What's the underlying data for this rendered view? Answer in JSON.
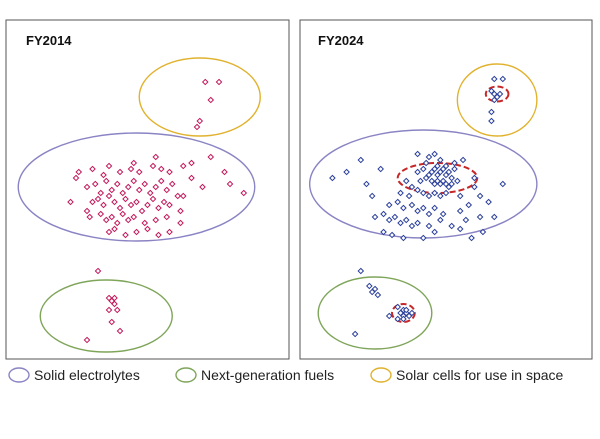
{
  "colors": {
    "solid_electrolytes": "#8a84c4",
    "next_generation_fuels": "#7fa55a",
    "solar_cells": "#e0b22e",
    "fy2014_points": "#c2185b",
    "fy2024_points": "#2a3f9a",
    "highlight": "#c62828"
  },
  "legend": {
    "items": [
      {
        "label": "Solid electrolytes",
        "color": "#8a84c4"
      },
      {
        "label": "Next-generation fuels",
        "color": "#7fa55a"
      },
      {
        "label": "Solar cells for use in space",
        "color": "#e0b22e"
      }
    ]
  },
  "chart_data": [
    {
      "type": "scatter",
      "title": "FY2014",
      "xlabel": "",
      "ylabel": "",
      "xlim": [
        0,
        100
      ],
      "ylim": [
        0,
        100
      ],
      "clusters": [
        {
          "name": "Solid electrolytes",
          "color": "#8a84c4",
          "center": [
            46,
            55
          ],
          "radius": [
            43,
            18
          ]
        },
        {
          "name": "Next-generation fuels",
          "color": "#7fa55a",
          "center": [
            35,
            12
          ],
          "radius": [
            24,
            12
          ]
        },
        {
          "name": "Solar cells for use in space",
          "color": "#e0b22e",
          "center": [
            69,
            85
          ],
          "radius": [
            22,
            13
          ]
        }
      ],
      "points": [
        [
          71,
          90
        ],
        [
          76,
          90
        ],
        [
          73,
          84
        ],
        [
          69,
          77
        ],
        [
          68,
          75
        ],
        [
          25,
          60
        ],
        [
          30,
          61
        ],
        [
          34,
          59
        ],
        [
          36,
          62
        ],
        [
          40,
          60
        ],
        [
          44,
          61
        ],
        [
          47,
          60
        ],
        [
          52,
          62
        ],
        [
          55,
          61
        ],
        [
          58,
          60
        ],
        [
          63,
          62
        ],
        [
          66,
          58
        ],
        [
          28,
          55
        ],
        [
          31,
          56
        ],
        [
          33,
          53
        ],
        [
          35,
          57
        ],
        [
          37,
          54
        ],
        [
          39,
          56
        ],
        [
          41,
          53
        ],
        [
          43,
          55
        ],
        [
          45,
          57
        ],
        [
          47,
          54
        ],
        [
          49,
          56
        ],
        [
          51,
          53
        ],
        [
          53,
          55
        ],
        [
          55,
          57
        ],
        [
          57,
          54
        ],
        [
          59,
          56
        ],
        [
          61,
          52
        ],
        [
          70,
          55
        ],
        [
          30,
          50
        ],
        [
          32,
          51
        ],
        [
          34,
          49
        ],
        [
          36,
          52
        ],
        [
          38,
          50
        ],
        [
          40,
          48
        ],
        [
          42,
          51
        ],
        [
          44,
          49
        ],
        [
          46,
          50
        ],
        [
          48,
          47
        ],
        [
          50,
          49
        ],
        [
          52,
          51
        ],
        [
          54,
          48
        ],
        [
          56,
          50
        ],
        [
          58,
          49
        ],
        [
          62,
          47
        ],
        [
          29,
          45
        ],
        [
          33,
          46
        ],
        [
          35,
          44
        ],
        [
          37,
          45
        ],
        [
          39,
          43
        ],
        [
          41,
          46
        ],
        [
          43,
          44
        ],
        [
          45,
          45
        ],
        [
          49,
          43
        ],
        [
          53,
          44
        ],
        [
          57,
          45
        ],
        [
          62,
          43
        ],
        [
          36,
          40
        ],
        [
          38,
          41
        ],
        [
          42,
          39
        ],
        [
          46,
          40
        ],
        [
          50,
          41
        ],
        [
          54,
          39
        ],
        [
          58,
          40
        ],
        [
          24,
          58
        ],
        [
          28,
          47
        ],
        [
          66,
          63
        ],
        [
          73,
          65
        ],
        [
          78,
          60
        ],
        [
          80,
          56
        ],
        [
          85,
          53
        ],
        [
          22,
          50
        ],
        [
          63,
          52
        ],
        [
          45,
          63
        ],
        [
          53,
          65
        ],
        [
          32,
          27
        ],
        [
          36,
          18
        ],
        [
          37,
          17
        ],
        [
          38,
          18
        ],
        [
          38,
          16
        ],
        [
          36,
          14
        ],
        [
          39,
          14
        ],
        [
          37,
          10
        ],
        [
          40,
          7
        ],
        [
          28,
          4
        ]
      ]
    },
    {
      "type": "scatter",
      "title": "FY2024",
      "xlabel": "",
      "ylabel": "",
      "xlim": [
        0,
        100
      ],
      "ylim": [
        0,
        100
      ],
      "clusters": [
        {
          "name": "Solid electrolytes",
          "color": "#8a84c4",
          "center": [
            42,
            56
          ],
          "radius": [
            40,
            18
          ]
        },
        {
          "name": "Next-generation fuels",
          "color": "#7fa55a",
          "center": [
            25,
            13
          ],
          "radius": [
            20,
            12
          ]
        },
        {
          "name": "Solar cells for use in space",
          "color": "#e0b22e",
          "center": [
            68,
            84
          ],
          "radius": [
            14,
            12
          ]
        }
      ],
      "highlights": [
        {
          "center": [
            68,
            86
          ],
          "radius": [
            4,
            2.5
          ]
        },
        {
          "center": [
            47,
            58
          ],
          "radius": [
            14,
            5
          ]
        },
        {
          "center": [
            35,
            13
          ],
          "radius": [
            4,
            3
          ]
        }
      ],
      "points": [
        [
          67,
          91
        ],
        [
          70,
          91
        ],
        [
          66,
          87
        ],
        [
          67,
          86
        ],
        [
          69,
          86
        ],
        [
          68,
          85
        ],
        [
          67,
          84
        ],
        [
          66,
          80
        ],
        [
          66,
          77
        ],
        [
          40,
          66
        ],
        [
          44,
          65
        ],
        [
          46,
          66
        ],
        [
          48,
          64
        ],
        [
          43,
          63
        ],
        [
          47,
          62
        ],
        [
          50,
          62
        ],
        [
          53,
          63
        ],
        [
          56,
          64
        ],
        [
          40,
          60
        ],
        [
          42,
          61
        ],
        [
          44,
          59
        ],
        [
          45,
          60
        ],
        [
          46,
          61
        ],
        [
          47,
          59
        ],
        [
          48,
          60
        ],
        [
          49,
          61
        ],
        [
          50,
          59
        ],
        [
          51,
          60
        ],
        [
          52,
          58
        ],
        [
          53,
          61
        ],
        [
          41,
          57
        ],
        [
          43,
          58
        ],
        [
          45,
          57
        ],
        [
          46,
          56
        ],
        [
          47,
          57
        ],
        [
          48,
          56
        ],
        [
          49,
          57
        ],
        [
          50,
          56
        ],
        [
          51,
          55
        ],
        [
          52,
          56
        ],
        [
          54,
          57
        ],
        [
          36,
          57
        ],
        [
          38,
          55
        ],
        [
          34,
          53
        ],
        [
          37,
          52
        ],
        [
          40,
          54
        ],
        [
          42,
          53
        ],
        [
          44,
          52
        ],
        [
          46,
          53
        ],
        [
          48,
          52
        ],
        [
          50,
          53
        ],
        [
          55,
          52
        ],
        [
          60,
          55
        ],
        [
          62,
          52
        ],
        [
          30,
          49
        ],
        [
          33,
          50
        ],
        [
          35,
          48
        ],
        [
          38,
          49
        ],
        [
          40,
          47
        ],
        [
          42,
          48
        ],
        [
          44,
          46
        ],
        [
          46,
          48
        ],
        [
          49,
          46
        ],
        [
          55,
          47
        ],
        [
          58,
          49
        ],
        [
          25,
          45
        ],
        [
          28,
          46
        ],
        [
          30,
          44
        ],
        [
          32,
          45
        ],
        [
          34,
          43
        ],
        [
          36,
          44
        ],
        [
          38,
          42
        ],
        [
          40,
          43
        ],
        [
          44,
          42
        ],
        [
          52,
          42
        ],
        [
          57,
          44
        ],
        [
          62,
          45
        ],
        [
          28,
          40
        ],
        [
          31,
          39
        ],
        [
          35,
          38
        ],
        [
          42,
          38
        ],
        [
          46,
          40
        ],
        [
          55,
          41
        ],
        [
          63,
          40
        ],
        [
          10,
          58
        ],
        [
          15,
          60
        ],
        [
          20,
          64
        ],
        [
          22,
          56
        ],
        [
          27,
          61
        ],
        [
          60,
          58
        ],
        [
          65,
          50
        ],
        [
          70,
          56
        ],
        [
          59,
          38
        ],
        [
          48,
          44
        ],
        [
          24,
          52
        ],
        [
          67,
          45
        ],
        [
          20,
          27
        ],
        [
          23,
          22
        ],
        [
          24,
          20
        ],
        [
          25,
          21
        ],
        [
          26,
          19
        ],
        [
          33,
          15
        ],
        [
          35,
          14
        ],
        [
          34,
          13
        ],
        [
          36,
          13
        ],
        [
          35,
          12
        ],
        [
          37,
          12
        ],
        [
          33,
          11
        ],
        [
          35,
          11
        ],
        [
          36,
          14
        ],
        [
          38,
          13
        ],
        [
          30,
          12
        ],
        [
          18,
          6
        ]
      ]
    }
  ]
}
